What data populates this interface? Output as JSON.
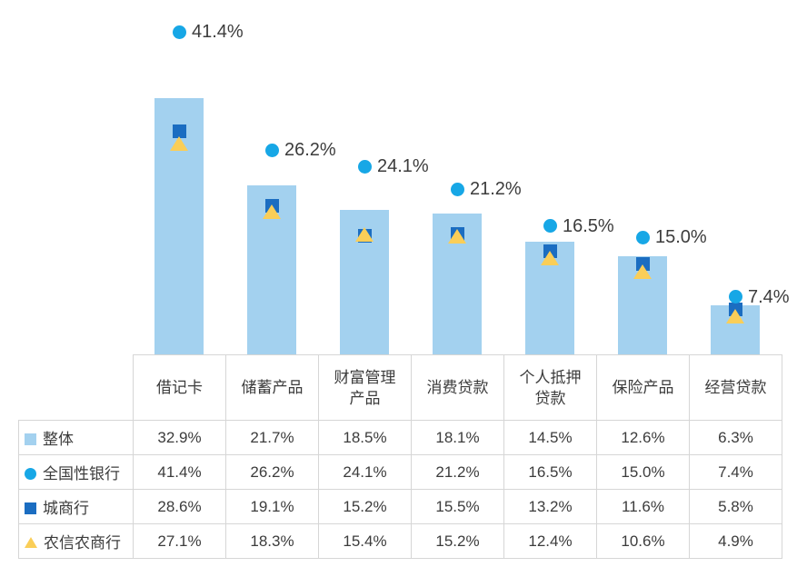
{
  "chart_data": {
    "type": "bar",
    "subtype": "bar-with-point-markers",
    "title": "",
    "xlabel": "",
    "ylabel": "",
    "value_suffix": "%",
    "ylim": [
      0,
      45.5
    ],
    "grid": false,
    "axes_visible": false,
    "legend_position": "table-rows-left",
    "categories": [
      "借记卡",
      "储蓄产品",
      "财富管理\n产品",
      "消费贷款",
      "个人抵押\n贷款",
      "保险产品",
      "经营贷款"
    ],
    "series": [
      {
        "name": "整体",
        "render": "bar",
        "legend_icon": "square",
        "color": "#a3d1ef",
        "values": [
          32.9,
          21.7,
          18.5,
          18.1,
          14.5,
          12.6,
          6.3
        ],
        "show_labels": false
      },
      {
        "name": "全国性银行",
        "render": "point",
        "legend_icon": "circle",
        "color": "#17a7e6",
        "values": [
          41.4,
          26.2,
          24.1,
          21.2,
          16.5,
          15.0,
          7.4
        ],
        "show_labels": true,
        "labels": [
          "41.4%",
          "26.2%",
          "24.1%",
          "21.2%",
          "16.5%",
          "15.0%",
          "7.4%"
        ]
      },
      {
        "name": "城商行",
        "render": "point",
        "legend_icon": "square",
        "color": "#1b6dc1",
        "values": [
          28.6,
          19.1,
          15.2,
          15.5,
          13.2,
          11.6,
          5.8
        ],
        "show_labels": false
      },
      {
        "name": "农信农商行",
        "render": "point",
        "legend_icon": "triangle",
        "color": "#face58",
        "values": [
          27.1,
          18.3,
          15.4,
          15.2,
          12.4,
          10.6,
          4.9
        ],
        "show_labels": false
      }
    ],
    "table_rows": [
      {
        "label": "整体",
        "cells": [
          "32.9%",
          "21.7%",
          "18.5%",
          "18.1%",
          "14.5%",
          "12.6%",
          "6.3%"
        ]
      },
      {
        "label": "全国性银行",
        "cells": [
          "41.4%",
          "26.2%",
          "24.1%",
          "21.2%",
          "16.5%",
          "15.0%",
          "7.4%"
        ]
      },
      {
        "label": "城商行",
        "cells": [
          "28.6%",
          "19.1%",
          "15.2%",
          "15.5%",
          "13.2%",
          "11.6%",
          "5.8%"
        ]
      },
      {
        "label": "农信农商行",
        "cells": [
          "27.1%",
          "18.3%",
          "15.4%",
          "15.2%",
          "12.4%",
          "10.6%",
          "4.9%"
        ]
      }
    ],
    "colors": {
      "background": "#ffffff",
      "text": "#3c3c3c",
      "table_border": "#d6d6d6"
    }
  }
}
